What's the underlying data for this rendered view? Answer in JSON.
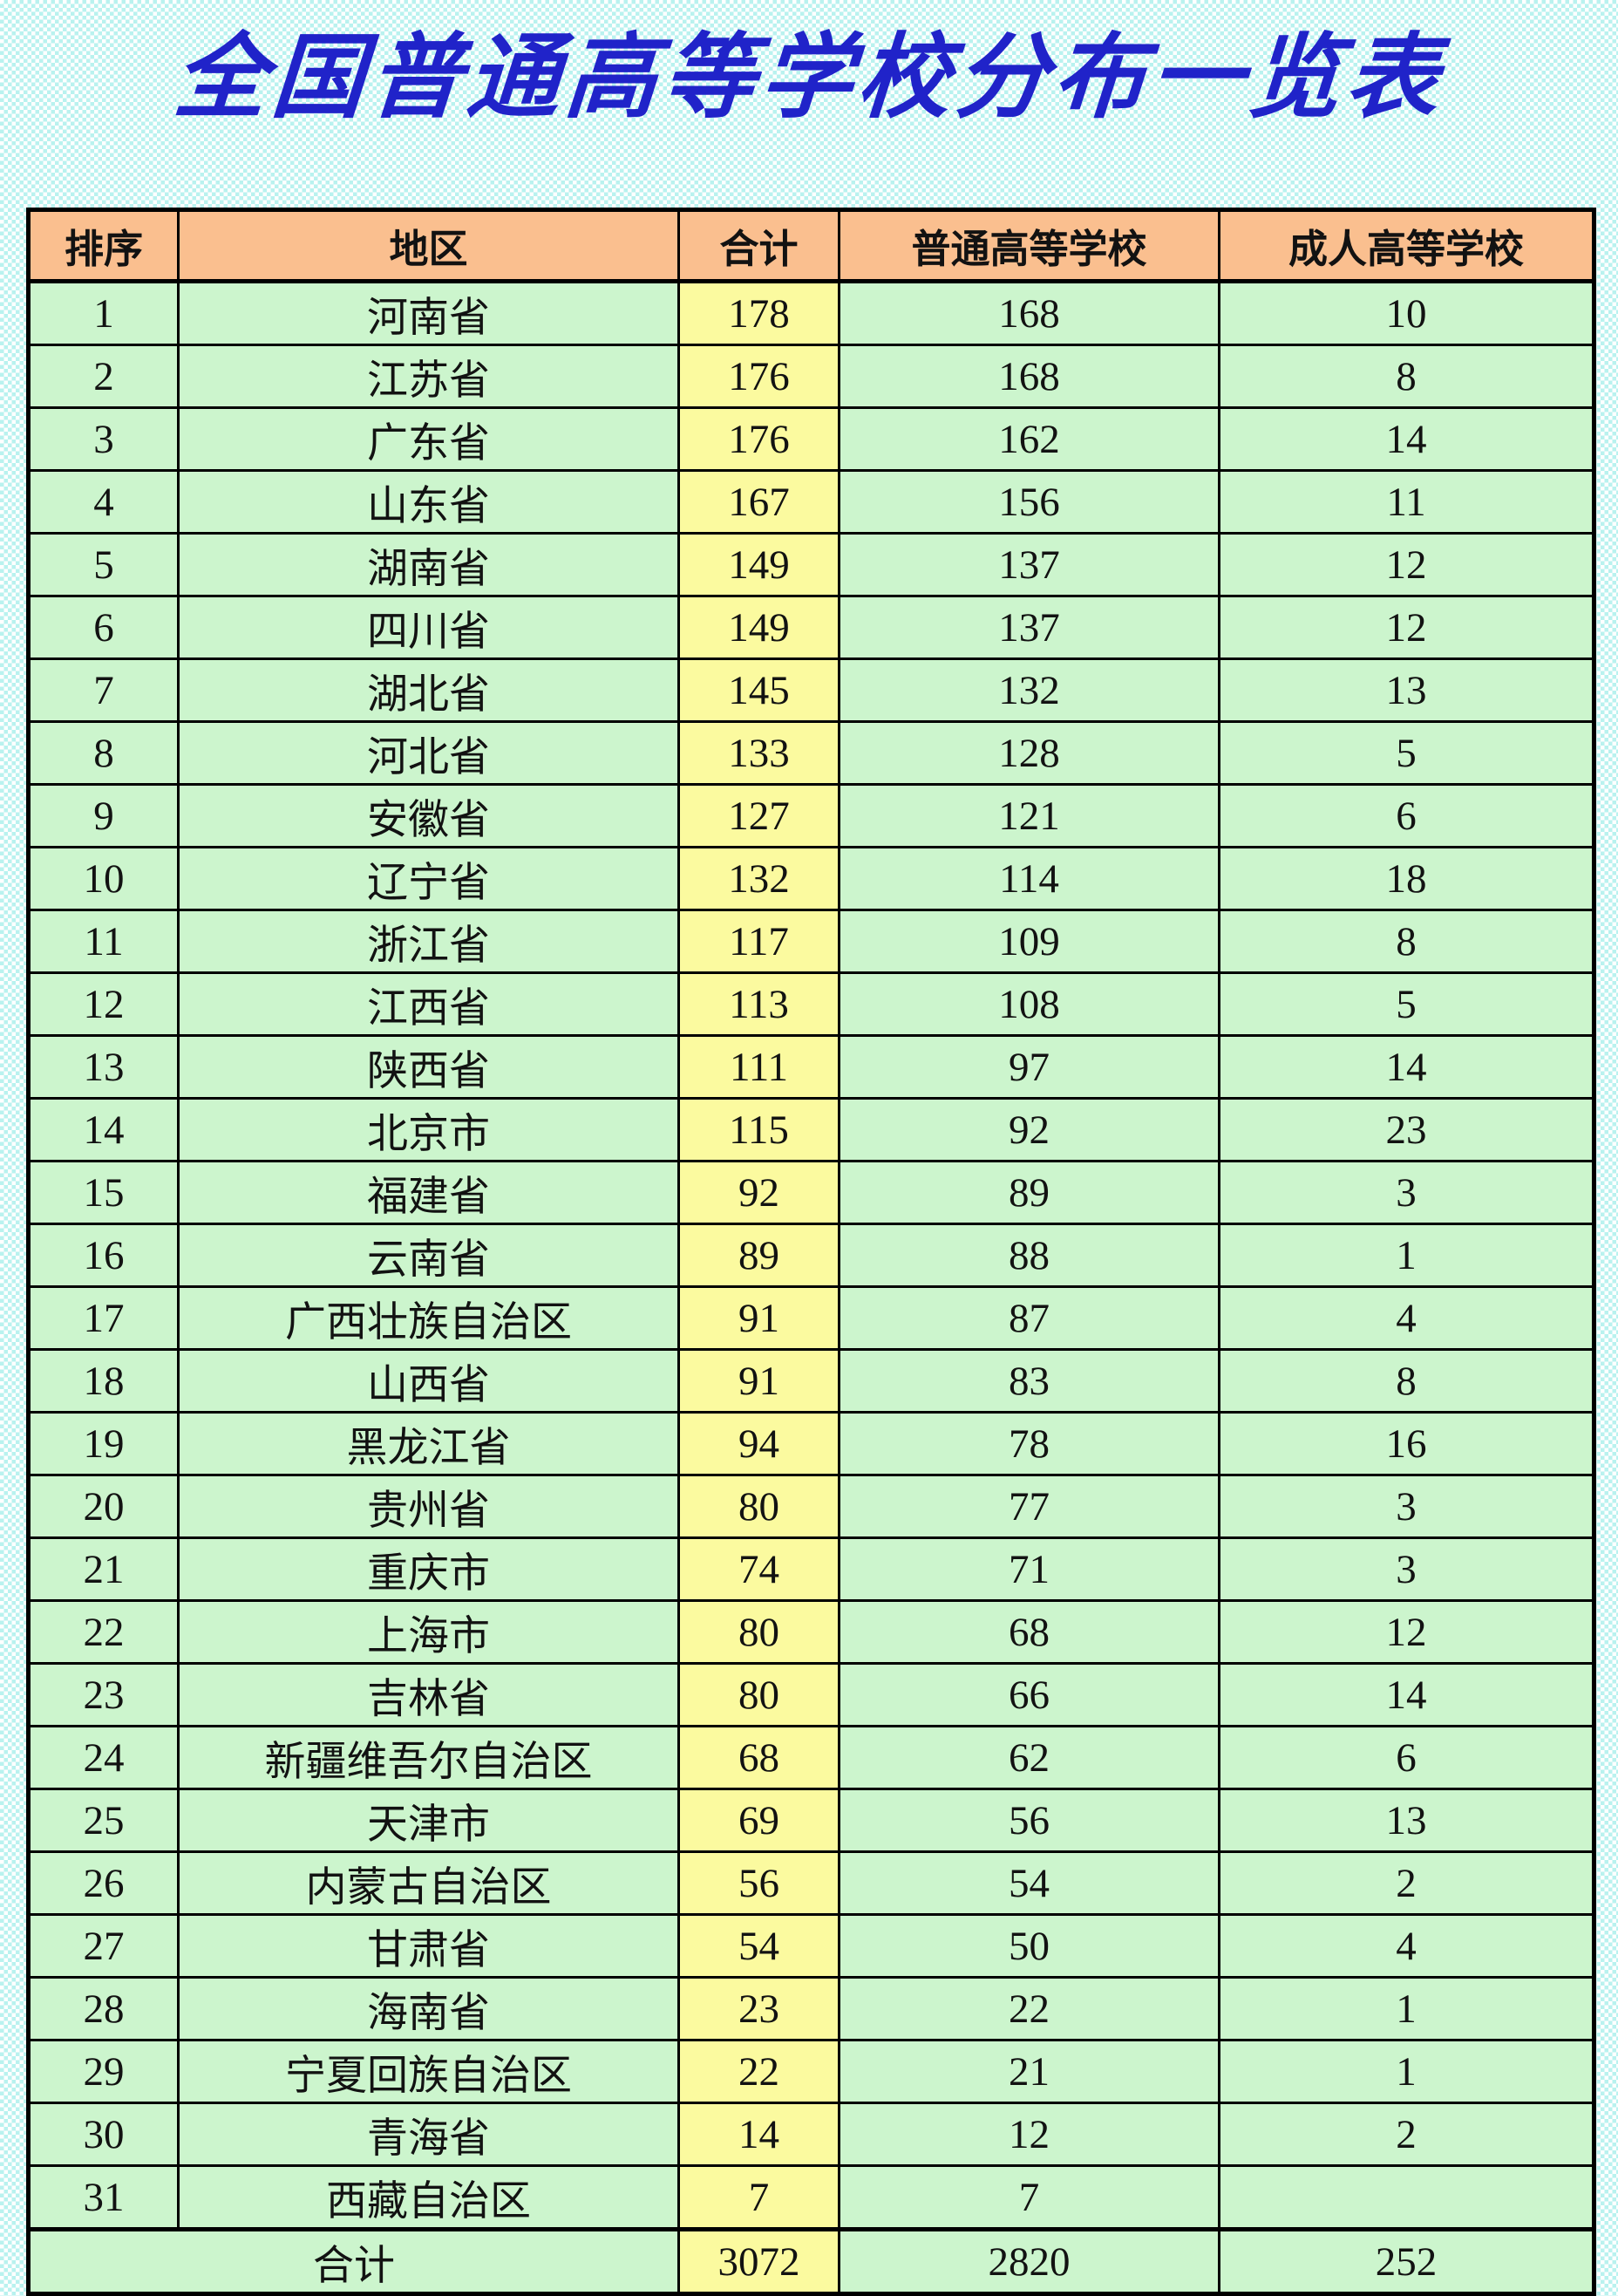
{
  "title": "全国普通高等学校分布一览表",
  "colors": {
    "header_bg": "#fabf8f",
    "row_bg": "#ccf5cd",
    "total_col_bg": "#fbfa9f",
    "title_color": "#2023c9",
    "checker": "#b9f2ef",
    "border_color": "#000000"
  },
  "table": {
    "headers": [
      "排序",
      "地区",
      "合计",
      "普通高等学校",
      "成人高等学校"
    ],
    "rows": [
      [
        "1",
        "河南省",
        "178",
        "168",
        "10"
      ],
      [
        "2",
        "江苏省",
        "176",
        "168",
        "8"
      ],
      [
        "3",
        "广东省",
        "176",
        "162",
        "14"
      ],
      [
        "4",
        "山东省",
        "167",
        "156",
        "11"
      ],
      [
        "5",
        "湖南省",
        "149",
        "137",
        "12"
      ],
      [
        "6",
        "四川省",
        "149",
        "137",
        "12"
      ],
      [
        "7",
        "湖北省",
        "145",
        "132",
        "13"
      ],
      [
        "8",
        "河北省",
        "133",
        "128",
        "5"
      ],
      [
        "9",
        "安徽省",
        "127",
        "121",
        "6"
      ],
      [
        "10",
        "辽宁省",
        "132",
        "114",
        "18"
      ],
      [
        "11",
        "浙江省",
        "117",
        "109",
        "8"
      ],
      [
        "12",
        "江西省",
        "113",
        "108",
        "5"
      ],
      [
        "13",
        "陕西省",
        "111",
        "97",
        "14"
      ],
      [
        "14",
        "北京市",
        "115",
        "92",
        "23"
      ],
      [
        "15",
        "福建省",
        "92",
        "89",
        "3"
      ],
      [
        "16",
        "云南省",
        "89",
        "88",
        "1"
      ],
      [
        "17",
        "广西壮族自治区",
        "91",
        "87",
        "4"
      ],
      [
        "18",
        "山西省",
        "91",
        "83",
        "8"
      ],
      [
        "19",
        "黑龙江省",
        "94",
        "78",
        "16"
      ],
      [
        "20",
        "贵州省",
        "80",
        "77",
        "3"
      ],
      [
        "21",
        "重庆市",
        "74",
        "71",
        "3"
      ],
      [
        "22",
        "上海市",
        "80",
        "68",
        "12"
      ],
      [
        "23",
        "吉林省",
        "80",
        "66",
        "14"
      ],
      [
        "24",
        "新疆维吾尔自治区",
        "68",
        "62",
        "6"
      ],
      [
        "25",
        "天津市",
        "69",
        "56",
        "13"
      ],
      [
        "26",
        "内蒙古自治区",
        "56",
        "54",
        "2"
      ],
      [
        "27",
        "甘肃省",
        "54",
        "50",
        "4"
      ],
      [
        "28",
        "海南省",
        "23",
        "22",
        "1"
      ],
      [
        "29",
        "宁夏回族自治区",
        "22",
        "21",
        "1"
      ],
      [
        "30",
        "青海省",
        "14",
        "12",
        "2"
      ],
      [
        "31",
        "西藏自治区",
        "7",
        "7",
        ""
      ]
    ],
    "total_row": {
      "label": "合计",
      "total": "3072",
      "regular": "2820",
      "adult": "252"
    }
  }
}
